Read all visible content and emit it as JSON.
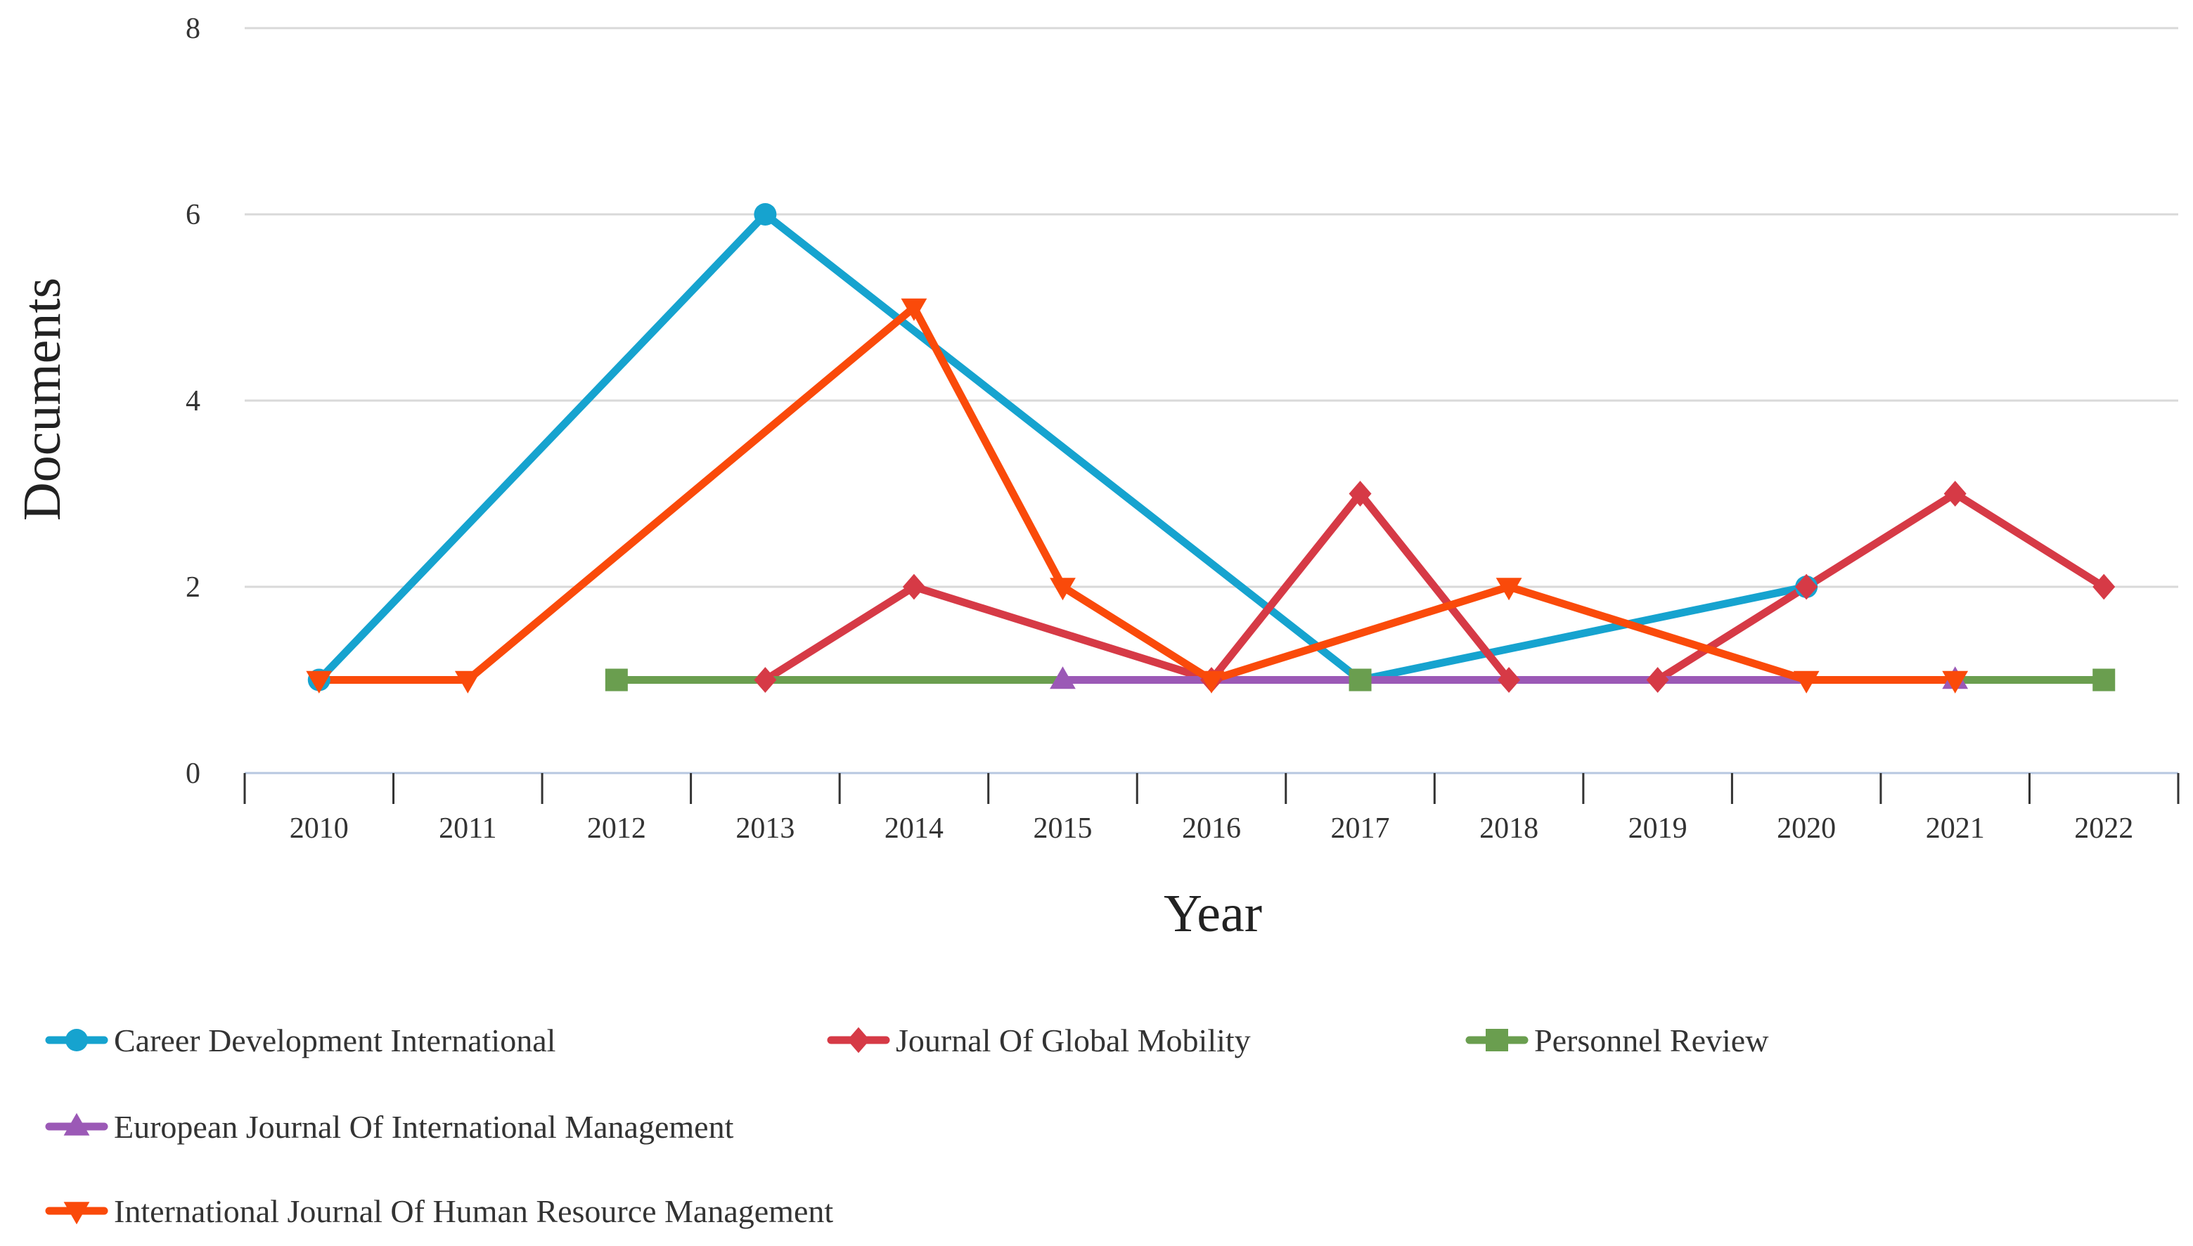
{
  "chart_data": {
    "type": "line",
    "title": "",
    "xlabel": "Year",
    "ylabel": "Documents",
    "ylim": [
      0,
      8
    ],
    "yticks": [
      0,
      2,
      4,
      6,
      8
    ],
    "categories": [
      "2010",
      "2011",
      "2012",
      "2013",
      "2014",
      "2015",
      "2016",
      "2017",
      "2018",
      "2019",
      "2020",
      "2021",
      "2022"
    ],
    "grid": true,
    "legend_position": "bottom",
    "series": [
      {
        "name": "Career Development International",
        "color": "#16A3CF",
        "marker": "circle",
        "points": [
          [
            "2010",
            1
          ],
          [
            "2013",
            6
          ],
          [
            "2017",
            1
          ],
          [
            "2020",
            2
          ]
        ]
      },
      {
        "name": "Journal Of Global Mobility",
        "color": "#D63A46",
        "marker": "diamond",
        "points": [
          [
            "2013",
            1
          ],
          [
            "2014",
            2
          ],
          [
            "2016",
            1
          ],
          [
            "2017",
            3
          ],
          [
            "2018",
            1
          ],
          [
            "2019",
            1
          ],
          [
            "2020",
            2
          ],
          [
            "2021",
            3
          ],
          [
            "2022",
            2
          ]
        ]
      },
      {
        "name": "Personnel Review",
        "color": "#6A9E4F",
        "marker": "square",
        "points": [
          [
            "2012",
            1
          ],
          [
            "2017",
            1
          ],
          [
            "2022",
            1
          ]
        ]
      },
      {
        "name": "European Journal Of International Management",
        "color": "#9B59B6",
        "marker": "triangle-up",
        "points": [
          [
            "2015",
            1
          ],
          [
            "2021",
            1
          ]
        ]
      },
      {
        "name": "International Journal Of Human Resource Management",
        "color": "#FA4A0A",
        "marker": "triangle-down",
        "points": [
          [
            "2010",
            1
          ],
          [
            "2011",
            1
          ],
          [
            "2014",
            5
          ],
          [
            "2015",
            2
          ],
          [
            "2016",
            1
          ],
          [
            "2018",
            2
          ],
          [
            "2020",
            1
          ],
          [
            "2021",
            1
          ]
        ]
      }
    ]
  }
}
